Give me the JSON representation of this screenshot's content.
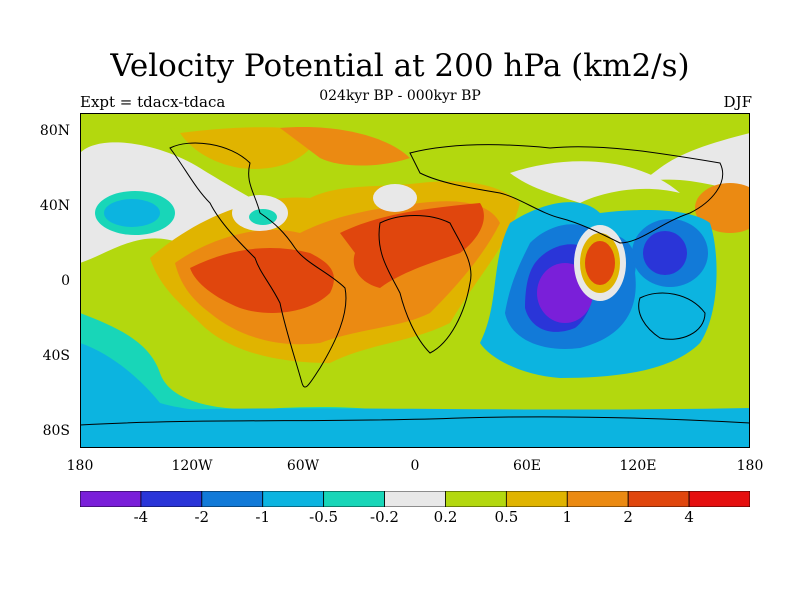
{
  "title": "Velocity Potential at 200 hPa (km2/s)",
  "subtitle": "024kyr BP - 000kyr BP",
  "left_label": "Expt = tdacx-tdaca",
  "right_label": "DJF",
  "lat_ticks": [
    "80N",
    "40N",
    "0",
    "40S",
    "80S"
  ],
  "lon_ticks": [
    "180",
    "120W",
    "60W",
    "0",
    "60E",
    "120E",
    "180"
  ],
  "colorbar": {
    "colors": [
      "#7a1fd9",
      "#2a35d8",
      "#127ad8",
      "#0cb4e0",
      "#18d6b8",
      "#e8e8e8",
      "#b3d80e",
      "#e0b400",
      "#eb8a12",
      "#e0460d",
      "#e50f0f"
    ],
    "labels": [
      "-4",
      "-2",
      "-1",
      "-0.5",
      "-0.2",
      "0.2",
      "0.5",
      "1",
      "2",
      "4"
    ]
  }
}
